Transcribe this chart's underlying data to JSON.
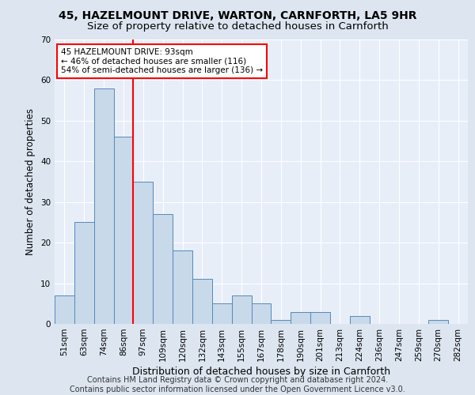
{
  "title1": "45, HAZELMOUNT DRIVE, WARTON, CARNFORTH, LA5 9HR",
  "title2": "Size of property relative to detached houses in Carnforth",
  "xlabel": "Distribution of detached houses by size in Carnforth",
  "ylabel": "Number of detached properties",
  "categories": [
    "51sqm",
    "63sqm",
    "74sqm",
    "86sqm",
    "97sqm",
    "109sqm",
    "120sqm",
    "132sqm",
    "143sqm",
    "155sqm",
    "167sqm",
    "178sqm",
    "190sqm",
    "201sqm",
    "213sqm",
    "224sqm",
    "236sqm",
    "247sqm",
    "259sqm",
    "270sqm",
    "282sqm"
  ],
  "values": [
    7,
    25,
    58,
    46,
    35,
    27,
    18,
    11,
    5,
    7,
    5,
    1,
    3,
    3,
    0,
    2,
    0,
    0,
    0,
    1,
    0
  ],
  "bar_color": "#c8d9ea",
  "bar_edge_color": "#5588bb",
  "vline_x_index": 3,
  "vline_color": "red",
  "annotation_text": "45 HAZELMOUNT DRIVE: 93sqm\n← 46% of detached houses are smaller (116)\n54% of semi-detached houses are larger (136) →",
  "annotation_box_color": "white",
  "annotation_box_edge": "red",
  "ylim": [
    0,
    70
  ],
  "yticks": [
    0,
    10,
    20,
    30,
    40,
    50,
    60,
    70
  ],
  "footer": "Contains HM Land Registry data © Crown copyright and database right 2024.\nContains public sector information licensed under the Open Government Licence v3.0.",
  "bg_color": "#dde6f0",
  "plot_bg_color": "#e8eef8",
  "grid_color": "white",
  "title1_fontsize": 10,
  "title2_fontsize": 9.5,
  "xlabel_fontsize": 9,
  "ylabel_fontsize": 8.5,
  "tick_fontsize": 7.5,
  "footer_fontsize": 7
}
